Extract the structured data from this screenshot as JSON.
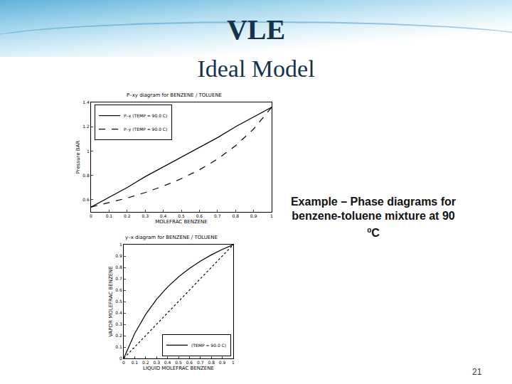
{
  "slide": {
    "title": "VLE",
    "subtitle": "Ideal Model",
    "caption": {
      "text": "Example – Phase diagrams for benzene-toluene mixture at 90 ",
      "superscript": "o",
      "suffix": "C"
    },
    "page": "21"
  },
  "chart_data": [
    {
      "type": "line",
      "title": "P–xy diagram for BENZENE / TOLUENE",
      "x_label": "MOLEFRAC BENZENE",
      "y_label": "Pressure BAR",
      "xlim": [
        0,
        1
      ],
      "xticks": [
        0,
        0.1,
        0.2,
        0.3,
        0.4,
        0.5,
        0.6,
        0.7,
        0.8,
        0.9,
        1
      ],
      "ylim": [
        0.5,
        1.4
      ],
      "yticks": [
        0.6,
        0.8,
        1,
        1.2,
        1.4
      ],
      "grid": false,
      "legend": "top left",
      "series": [
        {
          "name": "P–x (TEMP = 90.0 C)",
          "color": "#000000",
          "line_style": "solid",
          "x": [
            0,
            0.1,
            0.2,
            0.3,
            0.4,
            0.5,
            0.6,
            0.7,
            0.8,
            0.9,
            1
          ],
          "values": [
            0.54,
            0.62,
            0.7,
            0.79,
            0.87,
            0.95,
            1.03,
            1.11,
            1.2,
            1.28,
            1.36
          ]
        },
        {
          "name": "P–y (TEMP = 90.0 C)",
          "color": "#000000",
          "line_style": "dash",
          "x": [
            0,
            0.1,
            0.2,
            0.3,
            0.4,
            0.5,
            0.6,
            0.7,
            0.8,
            0.9,
            1
          ],
          "values": [
            0.54,
            0.575,
            0.614,
            0.659,
            0.712,
            0.773,
            0.846,
            0.934,
            1.044,
            1.181,
            1.36
          ]
        }
      ]
    },
    {
      "type": "line",
      "title": "y–x diagram for BENZENE / TOLUENE",
      "x_label": "LIQUID MOLEFRAC BENZENE",
      "y_label": "VAPOR MOLEFRAC BENZENE",
      "xlim": [
        0,
        1
      ],
      "xticks": [
        0,
        0.1,
        0.2,
        0.3,
        0.4,
        0.5,
        0.6,
        0.7,
        0.8,
        0.9,
        1
      ],
      "ylim": [
        0,
        1
      ],
      "yticks": [
        0,
        0.1,
        0.2,
        0.3,
        0.4,
        0.5,
        0.6,
        0.7,
        0.8,
        0.9,
        1
      ],
      "grid": false,
      "legend": "bottom right",
      "series": [
        {
          "name": "(TEMP = 90.0 C)",
          "color": "#000000",
          "line_style": "solid",
          "x": [
            0,
            0.1,
            0.2,
            0.3,
            0.4,
            0.5,
            0.6,
            0.7,
            0.8,
            0.9,
            1
          ],
          "values": [
            0,
            0.219,
            0.387,
            0.519,
            0.627,
            0.716,
            0.791,
            0.855,
            0.91,
            0.958,
            1
          ]
        },
        {
          "color": "#000000",
          "line_style": "dot",
          "x": [
            0,
            1
          ],
          "values": [
            0,
            1
          ]
        }
      ]
    }
  ]
}
